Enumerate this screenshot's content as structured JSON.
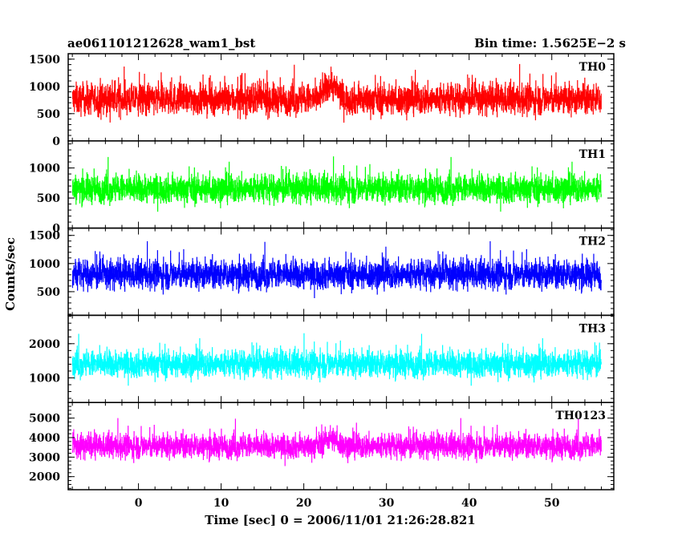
{
  "chart_data": {
    "type": "line",
    "title_left": "ae061101212628_wam1_bst",
    "title_right": "Bin time: 1.5625E−2 s",
    "xlabel": "Time [sec] 0 = 2006/11/01 21:26:28.821",
    "ylabel": "Counts/sec",
    "xlim": [
      -8.5,
      57.5
    ],
    "xticks": [
      0,
      10,
      20,
      30,
      40,
      50
    ],
    "xtick_labels": [
      "0",
      "10",
      "20",
      "30",
      "40",
      "50"
    ],
    "x_start": -8.0,
    "x_end": 56.0,
    "grid": false,
    "panels": [
      {
        "name": "TH0",
        "color": "#ff0000",
        "ylim": [
          0,
          1600
        ],
        "yticks": [
          0,
          500,
          1000,
          1500
        ],
        "ytick_labels": [
          "0",
          "500",
          "1000",
          "1500"
        ],
        "mean": 760,
        "spread": 360,
        "min": 0,
        "burst": {
          "x_start": 21.5,
          "x_end": 25.0,
          "extra": 300
        }
      },
      {
        "name": "TH1",
        "color": "#00ff00",
        "ylim": [
          0,
          1450
        ],
        "yticks": [
          0,
          500,
          1000
        ],
        "ytick_labels": [
          "0",
          "500",
          "1000"
        ],
        "mean": 650,
        "spread": 300,
        "min": 0,
        "burst": null
      },
      {
        "name": "TH2",
        "color": "#0000ff",
        "ylim": [
          80,
          1630
        ],
        "yticks": [
          500,
          1000,
          1500
        ],
        "ytick_labels": [
          "500",
          "1000",
          "1500"
        ],
        "mean": 800,
        "spread": 330,
        "min": 80,
        "burst": null
      },
      {
        "name": "TH3",
        "color": "#00ffff",
        "ylim": [
          280,
          2830
        ],
        "yticks": [
          1000,
          2000
        ],
        "ytick_labels": [
          "1000",
          "2000"
        ],
        "mean": 1400,
        "spread": 500,
        "min": 300,
        "burst": null
      },
      {
        "name": "TH0123",
        "color": "#ff00ff",
        "ylim": [
          1330,
          5800
        ],
        "yticks": [
          2000,
          3000,
          4000,
          5000
        ],
        "ytick_labels": [
          "2000",
          "3000",
          "4000",
          "5000"
        ],
        "mean": 3550,
        "spread": 800,
        "min": 1400,
        "burst": {
          "x_start": 21.5,
          "x_end": 25.0,
          "extra": 450
        }
      }
    ]
  }
}
